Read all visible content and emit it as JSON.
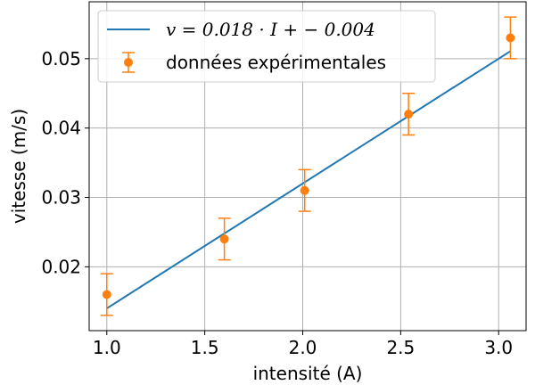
{
  "chart_data": {
    "type": "scatter",
    "title": "",
    "xlabel": "intensité (A)",
    "ylabel": "vitesse (m/s)",
    "xlim": [
      0.91,
      3.14
    ],
    "ylim": [
      0.0108,
      0.0582
    ],
    "xticks": [
      1.0,
      1.5,
      2.0,
      2.5,
      3.0
    ],
    "xtick_labels": [
      "1.0",
      "1.5",
      "2.0",
      "2.5",
      "3.0"
    ],
    "yticks": [
      0.02,
      0.03,
      0.04,
      0.05
    ],
    "ytick_labels": [
      "0.02",
      "0.03",
      "0.04",
      "0.05"
    ],
    "grid": true,
    "legend_position": "top-left",
    "series": [
      {
        "name": "fit",
        "kind": "line",
        "color": "#1f77b4",
        "label_text": "v = 0.018 · I + − 0.004",
        "slope": 0.018,
        "intercept": -0.004,
        "x": [
          1.0,
          3.06
        ]
      },
      {
        "name": "données expérimentales",
        "kind": "errorbar",
        "color": "#ff7f0e",
        "x": [
          1.0,
          1.6,
          2.01,
          2.54,
          3.06
        ],
        "y": [
          0.016,
          0.024,
          0.031,
          0.042,
          0.053
        ],
        "yerr": [
          0.003,
          0.003,
          0.003,
          0.003,
          0.003
        ]
      }
    ]
  }
}
